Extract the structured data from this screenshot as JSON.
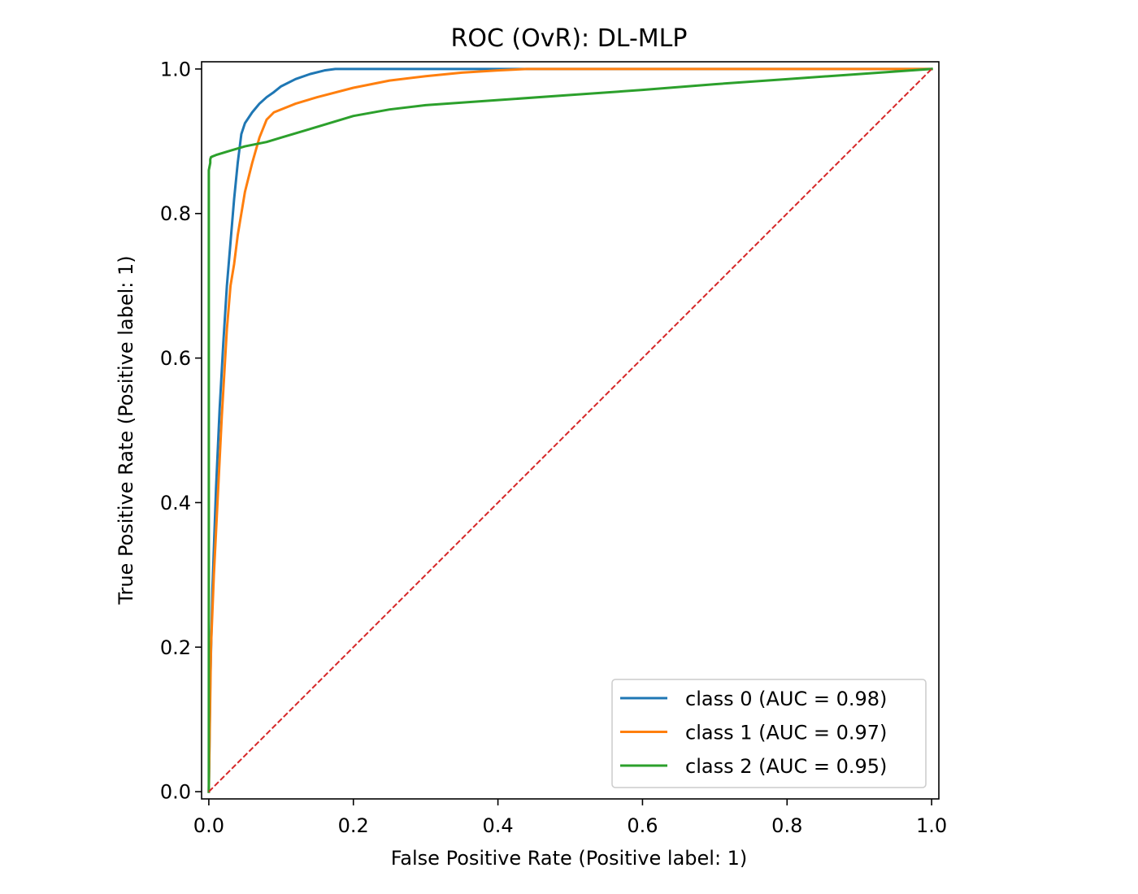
{
  "chart_data": {
    "type": "line",
    "title": "ROC (OvR): DL-MLP",
    "xlabel": "False Positive Rate (Positive label: 1)",
    "ylabel": "True Positive Rate (Positive label: 1)",
    "xlim": [
      -0.01,
      1.01
    ],
    "ylim": [
      -0.01,
      1.01
    ],
    "xticks": [
      0.0,
      0.2,
      0.4,
      0.6,
      0.8,
      1.0
    ],
    "xtick_labels": [
      "0.0",
      "0.2",
      "0.4",
      "0.6",
      "0.8",
      "1.0"
    ],
    "yticks": [
      0.0,
      0.2,
      0.4,
      0.6,
      0.8,
      1.0
    ],
    "ytick_labels": [
      "0.0",
      "0.2",
      "0.4",
      "0.6",
      "0.8",
      "1.0"
    ],
    "grid": false,
    "legend_position": "lower-right",
    "series": [
      {
        "name": "class 0 (AUC = 0.98)",
        "color": "#1f77b4",
        "x": [
          0.0,
          0.002,
          0.005,
          0.01,
          0.015,
          0.02,
          0.025,
          0.03,
          0.035,
          0.04,
          0.045,
          0.05,
          0.06,
          0.07,
          0.08,
          0.09,
          0.1,
          0.12,
          0.14,
          0.16,
          0.175,
          0.2,
          0.4,
          0.6,
          0.8,
          1.0
        ],
        "y": [
          0.0,
          0.15,
          0.28,
          0.42,
          0.53,
          0.62,
          0.7,
          0.76,
          0.82,
          0.87,
          0.91,
          0.925,
          0.94,
          0.952,
          0.961,
          0.968,
          0.976,
          0.986,
          0.993,
          0.998,
          1.0,
          1.0,
          1.0,
          1.0,
          1.0,
          1.0
        ]
      },
      {
        "name": "class 1 (AUC = 0.97)",
        "color": "#ff7f0e",
        "x": [
          0.0,
          0.003,
          0.007,
          0.012,
          0.018,
          0.025,
          0.03,
          0.035,
          0.04,
          0.05,
          0.06,
          0.07,
          0.08,
          0.09,
          0.12,
          0.15,
          0.2,
          0.25,
          0.3,
          0.35,
          0.4,
          0.44,
          0.6,
          0.8,
          1.0
        ],
        "y": [
          0.0,
          0.2,
          0.3,
          0.4,
          0.52,
          0.64,
          0.7,
          0.73,
          0.77,
          0.83,
          0.87,
          0.905,
          0.93,
          0.94,
          0.952,
          0.961,
          0.974,
          0.984,
          0.99,
          0.995,
          0.998,
          1.0,
          1.0,
          1.0,
          1.0
        ]
      },
      {
        "name": "class 2 (AUC = 0.95)",
        "color": "#2ca02c",
        "x": [
          0.0,
          0.0,
          0.001,
          0.002,
          0.002,
          0.003,
          0.005,
          0.01,
          0.03,
          0.05,
          0.08,
          0.1,
          0.15,
          0.2,
          0.25,
          0.3,
          0.4,
          0.5,
          0.6,
          0.7,
          0.8,
          0.9,
          1.0
        ],
        "y": [
          0.0,
          0.86,
          0.865,
          0.87,
          0.875,
          0.878,
          0.879,
          0.881,
          0.887,
          0.893,
          0.899,
          0.905,
          0.92,
          0.935,
          0.944,
          0.95,
          0.957,
          0.964,
          0.971,
          0.979,
          0.986,
          0.993,
          1.0
        ]
      },
      {
        "name": "chance",
        "color": "#d62728",
        "dashed": true,
        "x": [
          0.0,
          1.0
        ],
        "y": [
          0.0,
          1.0
        ]
      }
    ]
  }
}
